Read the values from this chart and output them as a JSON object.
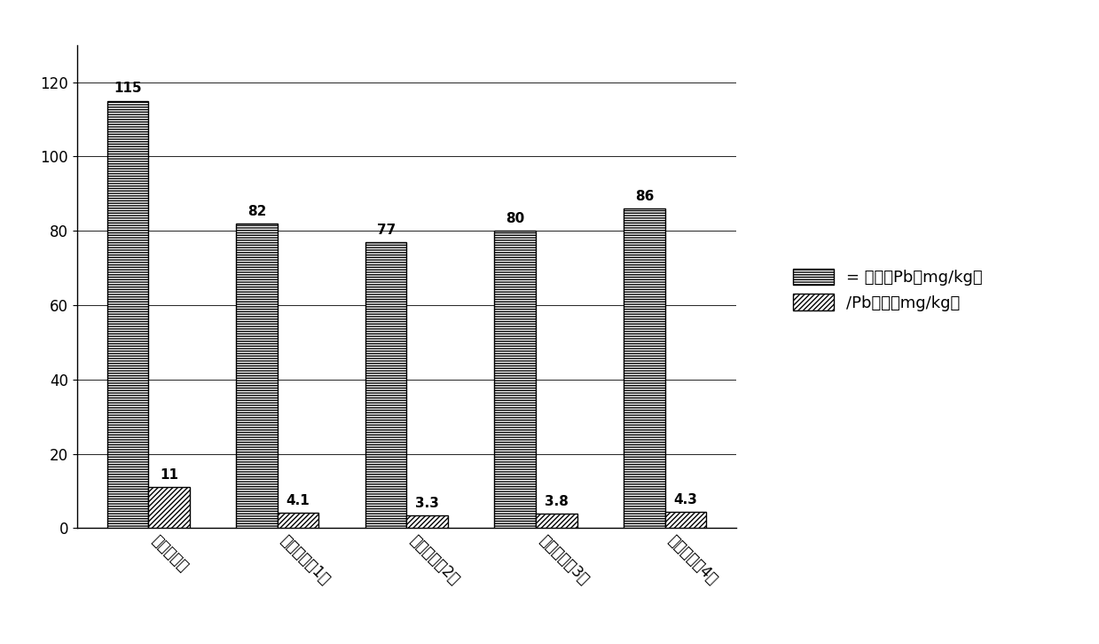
{
  "categories": [
    "空白对照组",
    "修复方式（1）",
    "修复方式（2）",
    "修复方式（3）",
    "修复方式（4）"
  ],
  "total_pb": [
    115,
    82,
    77,
    80,
    86
  ],
  "extract_pb": [
    11,
    4.1,
    3.3,
    3.8,
    4.3
  ],
  "total_pb_label": "= 土壤总Pb（mg/kg）",
  "extract_pb_label": "∕Pb提取（mg/kg）",
  "ylim": [
    0,
    130
  ],
  "yticks": [
    0,
    20,
    40,
    60,
    80,
    100,
    120
  ],
  "bar_width": 0.32,
  "background_color": "#ffffff",
  "fontsize_label": 13,
  "fontsize_tick": 12,
  "fontsize_annot": 11
}
